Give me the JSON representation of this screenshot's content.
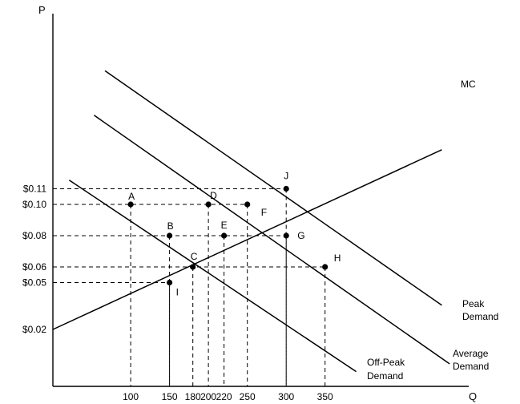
{
  "axes": {
    "y_title": "P",
    "x_title": "Q",
    "y_ticks": [
      {
        "label": "$0.11",
        "value": 0.11
      },
      {
        "label": "$0.10",
        "value": 0.1
      },
      {
        "label": "$0.08",
        "value": 0.08
      },
      {
        "label": "$0.06",
        "value": 0.06
      },
      {
        "label": "$0.05",
        "value": 0.05
      },
      {
        "label": "$0.02",
        "value": 0.02
      }
    ],
    "x_ticks": [
      {
        "label": "100",
        "value": 100
      },
      {
        "label": "150",
        "value": 150
      },
      {
        "label": "180",
        "value": 180
      },
      {
        "label": "200",
        "value": 200
      },
      {
        "label": "220",
        "value": 220
      },
      {
        "label": "250",
        "value": 250
      },
      {
        "label": "300",
        "value": 300
      },
      {
        "label": "350",
        "value": 350
      }
    ]
  },
  "curves": [
    {
      "id": "mc",
      "label_lines": [
        "MC"
      ],
      "from": {
        "q": 0,
        "p": 0.02
      },
      "to": {
        "q": 500,
        "p": 0.135
      }
    },
    {
      "id": "peak-demand",
      "label_lines": [
        "Peak",
        "Demand"
      ],
      "from": {
        "q": 67,
        "p": 0.1855
      },
      "to": {
        "q": 500,
        "p": 0.0355
      }
    },
    {
      "id": "average-demand",
      "label_lines": [
        "Average",
        "Demand"
      ],
      "from": {
        "q": 53,
        "p": 0.157
      },
      "to": {
        "q": 510,
        "p": -0.002
      }
    },
    {
      "id": "off-peak-demand",
      "label_lines": [
        "Off-Peak",
        "Demand"
      ],
      "from": {
        "q": 21,
        "p": 0.1155
      },
      "to": {
        "q": 390,
        "p": -0.007
      }
    }
  ],
  "points": [
    {
      "label": "A",
      "q": 100,
      "p": 0.1
    },
    {
      "label": "B",
      "q": 150,
      "p": 0.08
    },
    {
      "label": "C",
      "q": 180,
      "p": 0.06
    },
    {
      "label": "D",
      "q": 200,
      "p": 0.1
    },
    {
      "label": "E",
      "q": 220,
      "p": 0.08
    },
    {
      "label": "F",
      "q": 250,
      "p": 0.1
    },
    {
      "label": "G",
      "q": 300,
      "p": 0.08
    },
    {
      "label": "H",
      "q": 350,
      "p": 0.06
    },
    {
      "label": "I",
      "q": 150,
      "p": 0.05
    },
    {
      "label": "J",
      "q": 300,
      "p": 0.11
    }
  ]
}
